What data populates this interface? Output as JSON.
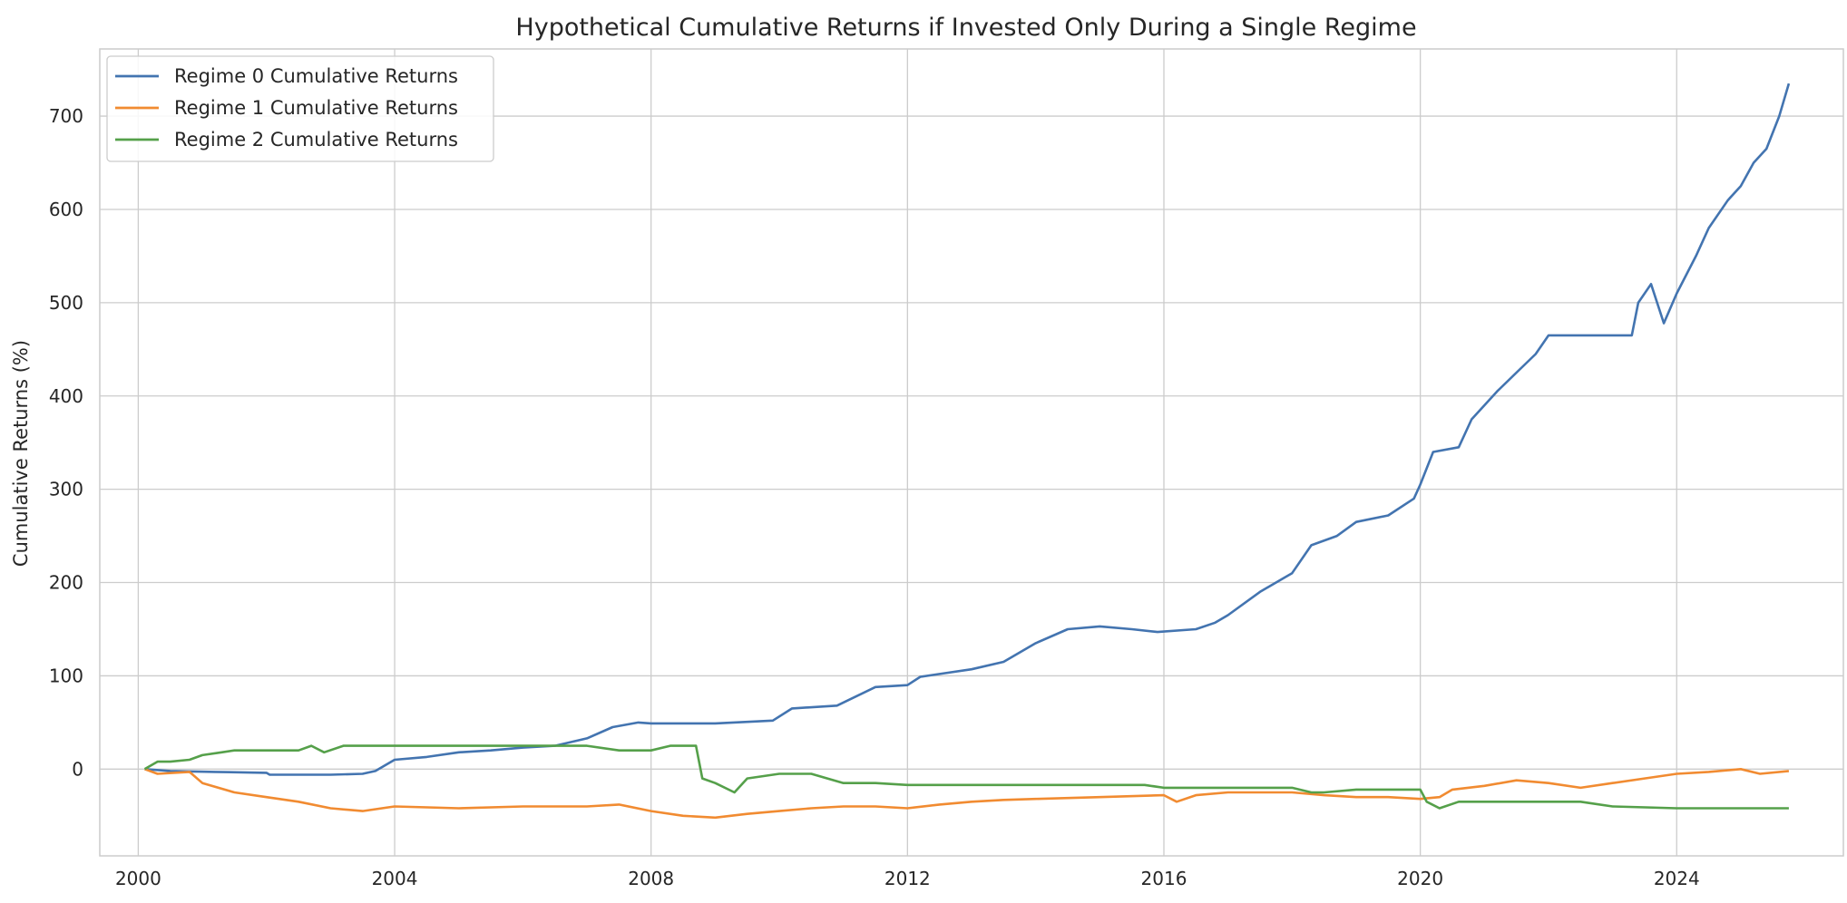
{
  "chart_data": {
    "type": "line",
    "title": "Hypothetical Cumulative Returns if Invested Only During a Single Regime",
    "xlabel": "",
    "ylabel": "Cumulative Returns (%)",
    "xlim": [
      1999.4,
      2026.6
    ],
    "ylim": [
      -93,
      772
    ],
    "x_ticks": [
      2000,
      2004,
      2008,
      2012,
      2016,
      2020,
      2024
    ],
    "y_ticks": [
      0,
      100,
      200,
      300,
      400,
      500,
      600,
      700
    ],
    "grid": true,
    "legend_position": "top-left",
    "series": [
      {
        "name": "Regime 0 Cumulative Returns",
        "color": "#4374b0",
        "x": [
          2000.1,
          2000.5,
          2001.2,
          2002.0,
          2002.05,
          2003.0,
          2003.5,
          2003.7,
          2004.0,
          2004.5,
          2005.0,
          2005.5,
          2006.0,
          2006.5,
          2007.0,
          2007.4,
          2007.8,
          2008.0,
          2009.0,
          2009.9,
          2010.2,
          2010.9,
          2011.2,
          2011.5,
          2012.0,
          2012.2,
          2012.5,
          2013.0,
          2013.5,
          2014.0,
          2014.5,
          2015.0,
          2015.5,
          2015.9,
          2016.5,
          2016.8,
          2017.0,
          2017.5,
          2018.0,
          2018.3,
          2018.7,
          2019.0,
          2019.5,
          2019.9,
          2020.0,
          2020.2,
          2020.6,
          2020.8,
          2021.2,
          2021.5,
          2021.8,
          2022.0,
          2023.3,
          2023.4,
          2023.6,
          2023.8,
          2024.0,
          2024.3,
          2024.5,
          2024.8,
          2025.0,
          2025.2,
          2025.4,
          2025.6,
          2025.75
        ],
        "y": [
          0,
          -2,
          -3,
          -4,
          -6,
          -6,
          -5,
          -2,
          10,
          13,
          18,
          20,
          23,
          25,
          33,
          45,
          50,
          49,
          49,
          52,
          65,
          68,
          78,
          88,
          90,
          99,
          102,
          107,
          115,
          135,
          150,
          153,
          150,
          147,
          150,
          157,
          165,
          190,
          210,
          240,
          250,
          265,
          272,
          290,
          305,
          340,
          345,
          375,
          405,
          425,
          445,
          465,
          465,
          500,
          520,
          478,
          510,
          550,
          580,
          610,
          625,
          650,
          665,
          700,
          735
        ]
      },
      {
        "name": "Regime 1 Cumulative Returns",
        "color": "#f18b31",
        "x": [
          2000.1,
          2000.3,
          2000.8,
          2001.0,
          2001.5,
          2002.0,
          2002.5,
          2003.0,
          2003.5,
          2004.0,
          2005.0,
          2006.0,
          2007.0,
          2007.5,
          2008.0,
          2008.5,
          2009.0,
          2009.5,
          2010.0,
          2010.5,
          2011.0,
          2011.5,
          2012.0,
          2012.5,
          2013.0,
          2013.5,
          2014.0,
          2015.0,
          2016.0,
          2016.2,
          2016.5,
          2017.0,
          2018.0,
          2018.5,
          2019.0,
          2019.5,
          2020.0,
          2020.3,
          2020.5,
          2021.0,
          2021.5,
          2022.0,
          2022.5,
          2023.0,
          2023.5,
          2024.0,
          2024.5,
          2025.0,
          2025.3,
          2025.75
        ],
        "y": [
          0,
          -5,
          -3,
          -15,
          -25,
          -30,
          -35,
          -42,
          -45,
          -40,
          -42,
          -40,
          -40,
          -38,
          -45,
          -50,
          -52,
          -48,
          -45,
          -42,
          -40,
          -40,
          -42,
          -38,
          -35,
          -33,
          -32,
          -30,
          -28,
          -35,
          -28,
          -25,
          -25,
          -28,
          -30,
          -30,
          -32,
          -30,
          -22,
          -18,
          -12,
          -15,
          -20,
          -15,
          -10,
          -5,
          -3,
          0,
          -5,
          -2
        ]
      },
      {
        "name": "Regime 2 Cumulative Returns",
        "color": "#55a04a",
        "x": [
          2000.1,
          2000.3,
          2000.5,
          2000.8,
          2001.0,
          2001.3,
          2001.5,
          2002.0,
          2002.5,
          2002.7,
          2002.9,
          2003.2,
          2004.0,
          2006.0,
          2007.0,
          2007.5,
          2008.0,
          2008.3,
          2008.7,
          2008.8,
          2009.0,
          2009.3,
          2009.5,
          2010.0,
          2010.5,
          2011.0,
          2011.5,
          2012.0,
          2013.0,
          2014.0,
          2015.0,
          2015.7,
          2016.0,
          2017.0,
          2018.0,
          2018.3,
          2018.5,
          2019.0,
          2020.0,
          2020.1,
          2020.3,
          2020.6,
          2021.0,
          2022.0,
          2022.5,
          2023.0,
          2024.0,
          2025.0,
          2025.75
        ],
        "y": [
          0,
          8,
          8,
          10,
          15,
          18,
          20,
          20,
          20,
          25,
          18,
          25,
          25,
          25,
          25,
          20,
          20,
          25,
          25,
          -10,
          -15,
          -25,
          -10,
          -5,
          -5,
          -15,
          -15,
          -17,
          -17,
          -17,
          -17,
          -17,
          -20,
          -20,
          -20,
          -25,
          -25,
          -22,
          -22,
          -35,
          -42,
          -35,
          -35,
          -35,
          -35,
          -40,
          -42,
          -42,
          -42
        ]
      }
    ]
  }
}
